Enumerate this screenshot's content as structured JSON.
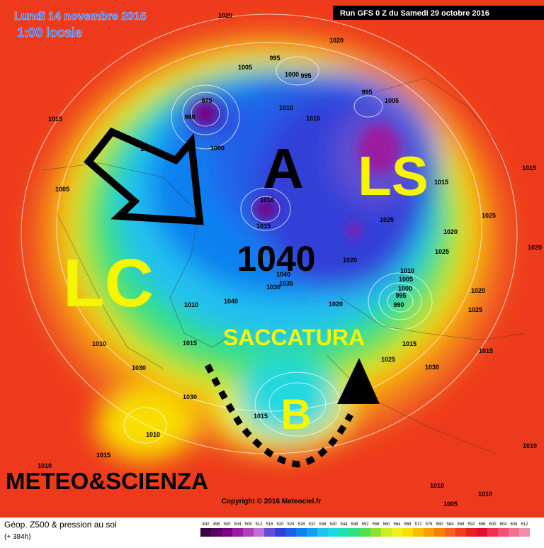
{
  "header": {
    "valid_date": "Lundi 14 novembre 2016",
    "local_time": "1:00 locale",
    "run": "Run GFS 0 Z du Samedi 29 octobre 2016"
  },
  "annotations": {
    "high": "A",
    "ls": "LS",
    "lc": "LC",
    "pressure": "1040",
    "trough": "SACCATURA",
    "low": "B",
    "brand": "METEO&SCIENZA"
  },
  "isobar_labels": [
    "1020",
    "1020",
    "995",
    "1005",
    "1000",
    "995",
    "975",
    "980",
    "1010",
    "1015",
    "995",
    "1005",
    "1000",
    "1025",
    "1005",
    "1010",
    "1015",
    "1015",
    "1025",
    "1020",
    "1025",
    "1020",
    "1025",
    "1020",
    "1010",
    "1005",
    "1000",
    "995",
    "990",
    "1040",
    "1035",
    "1030",
    "1040",
    "1020",
    "1010",
    "1020",
    "1025",
    "1015",
    "1015",
    "1025",
    "1030",
    "1015",
    "1030",
    "1030",
    "1015",
    "1015",
    "1010",
    "1010",
    "1010",
    "1005",
    "1010",
    "1010",
    "1015",
    "1015",
    "1010"
  ],
  "copyright": "Copyright © 2016 Meteociel.fr",
  "legend": {
    "title": "Géop. Z500 & pression au sol",
    "lead": "(+ 384h)",
    "scale": [
      492,
      496,
      500,
      504,
      508,
      512,
      516,
      520,
      524,
      528,
      532,
      536,
      540,
      544,
      548,
      552,
      556,
      560,
      564,
      568,
      572,
      576,
      580,
      584,
      588,
      592,
      596,
      600,
      604,
      608,
      612
    ],
    "colors": [
      "#3a0040",
      "#5a0060",
      "#7a0080",
      "#9a1aa0",
      "#b040b8",
      "#c070d0",
      "#6050d0",
      "#3040d8",
      "#2060e8",
      "#1080f0",
      "#10a0f0",
      "#20c0f0",
      "#20d8e0",
      "#20e0b0",
      "#30e080",
      "#50e050",
      "#90e030",
      "#c8f020",
      "#f0f020",
      "#f8e000",
      "#f8c000",
      "#f8a000",
      "#f88000",
      "#f86020",
      "#f04020",
      "#e82020",
      "#e01030",
      "#f03050",
      "#f05070",
      "#f07090",
      "#f090b0"
    ]
  }
}
